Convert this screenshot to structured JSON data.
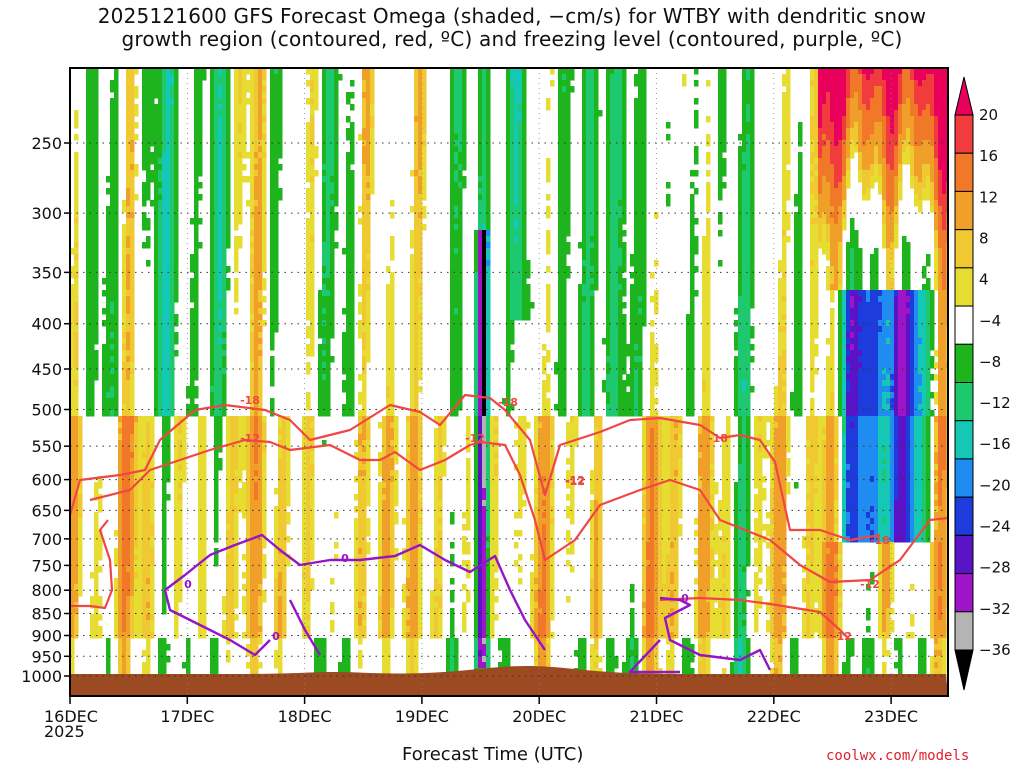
{
  "chart_data": {
    "type": "heatmap",
    "title_line1": "2025121600 GFS Forecast Omega (shaded, −cm/s) for WTBY with dendritic snow",
    "title_line2": "growth region (contoured, red, ºC) and freezing level (contoured, purple, ºC)",
    "xlabel": "Forecast Time (UTC)",
    "x_ticks": [
      "16DEC",
      "17DEC",
      "18DEC",
      "19DEC",
      "20DEC",
      "21DEC",
      "22DEC",
      "23DEC"
    ],
    "x_year": "2025",
    "y_ticks": [
      250,
      300,
      350,
      400,
      450,
      500,
      550,
      600,
      650,
      700,
      750,
      800,
      850,
      900,
      950,
      1000
    ],
    "y_range_hpa": [
      200,
      1020
    ],
    "colorbar_levels": [
      20,
      16,
      12,
      8,
      4,
      -4,
      -8,
      -12,
      -16,
      -20,
      -24,
      -28,
      -32,
      -36
    ],
    "colorbar_colors": [
      "#e8005a",
      "#f03c3c",
      "#f07828",
      "#f0a028",
      "#f0c832",
      "#e6dc32",
      "#ffffff",
      "#1eb41e",
      "#1ec86e",
      "#14c8b4",
      "#1e8cf0",
      "#1e3cdc",
      "#5a14c8",
      "#a014c8",
      "#b4b4b4",
      "#000000"
    ],
    "contour_labels": {
      "dgz_red": [
        "-18",
        "-12",
        "-12",
        "-18",
        "-12",
        "-18",
        "-12",
        "-18",
        "-12",
        "-12"
      ],
      "freezing_purple": [
        "0",
        "0",
        "0",
        "0"
      ]
    },
    "ground_color": "#9c4a22",
    "dgz_color": "#f04646",
    "freezing_color": "#9614c8"
  },
  "credit": "coolwx.com/models"
}
